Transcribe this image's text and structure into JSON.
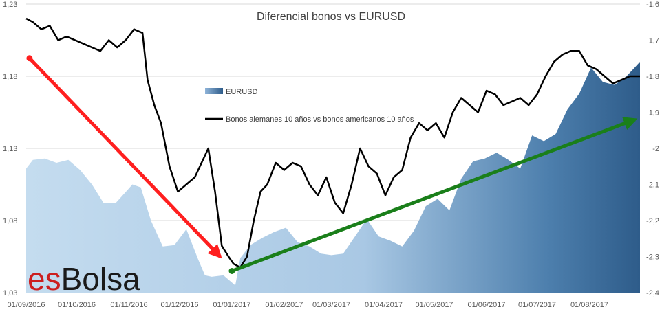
{
  "chart_data": {
    "type": "area",
    "title": "Diferencial bonos vs EURUSD",
    "categories": [
      "01/09/2016",
      "01/10/2016",
      "01/11/2016",
      "01/12/2016",
      "01/01/2017",
      "01/02/2017",
      "01/03/2017",
      "01/04/2017",
      "01/05/2017",
      "01/06/2017",
      "01/07/2017",
      "01/08/2017"
    ],
    "x_range": [
      "2016-09-01",
      "2017-08-31"
    ],
    "y_left": {
      "ticks": [
        "1,03",
        "1,08",
        "1,13",
        "1,18",
        "1,23"
      ],
      "ylim": [
        1.03,
        1.23
      ]
    },
    "y_right": {
      "ticks": [
        "-1,6",
        "-1,7",
        "-1,8",
        "-1,9",
        "-2",
        "-2,1",
        "-2,2",
        "-2,3",
        "-2,4"
      ],
      "ylim": [
        -2.4,
        -1.6
      ]
    },
    "legend_position": "middle-left",
    "grid": "horizontal",
    "series": [
      {
        "name": "EURUSD",
        "type": "area",
        "axis": "left",
        "color": "#2e5c8a",
        "x": [
          "2016-09-01",
          "2016-09-05",
          "2016-09-12",
          "2016-09-19",
          "2016-09-26",
          "2016-10-03",
          "2016-10-10",
          "2016-10-17",
          "2016-10-24",
          "2016-10-31",
          "2016-11-03",
          "2016-11-08",
          "2016-11-14",
          "2016-11-21",
          "2016-11-28",
          "2016-12-05",
          "2016-12-12",
          "2016-12-16",
          "2016-12-20",
          "2016-12-27",
          "2017-01-03",
          "2017-01-06",
          "2017-01-12",
          "2017-01-19",
          "2017-01-26",
          "2017-02-02",
          "2017-02-09",
          "2017-02-16",
          "2017-02-23",
          "2017-03-01",
          "2017-03-08",
          "2017-03-15",
          "2017-03-22",
          "2017-03-29",
          "2017-04-05",
          "2017-04-12",
          "2017-04-19",
          "2017-04-26",
          "2017-05-03",
          "2017-05-10",
          "2017-05-17",
          "2017-05-24",
          "2017-05-31",
          "2017-06-07",
          "2017-06-14",
          "2017-06-21",
          "2017-06-28",
          "2017-07-05",
          "2017-07-12",
          "2017-07-19",
          "2017-07-26",
          "2017-08-02",
          "2017-08-09",
          "2017-08-16",
          "2017-08-23",
          "2017-08-31"
        ],
        "values": [
          1.116,
          1.122,
          1.123,
          1.12,
          1.122,
          1.115,
          1.105,
          1.092,
          1.092,
          1.101,
          1.105,
          1.103,
          1.08,
          1.062,
          1.063,
          1.074,
          1.053,
          1.042,
          1.041,
          1.042,
          1.035,
          1.054,
          1.063,
          1.068,
          1.072,
          1.075,
          1.065,
          1.062,
          1.057,
          1.056,
          1.057,
          1.069,
          1.081,
          1.069,
          1.066,
          1.062,
          1.073,
          1.09,
          1.095,
          1.087,
          1.109,
          1.121,
          1.123,
          1.127,
          1.122,
          1.116,
          1.139,
          1.135,
          1.14,
          1.157,
          1.168,
          1.186,
          1.176,
          1.174,
          1.18,
          1.19
        ]
      },
      {
        "name": "Bonos alemanes 10 años vs bonos americanos 10 años",
        "type": "line",
        "axis": "right",
        "color": "#000000",
        "x": [
          "2016-09-01",
          "2016-09-05",
          "2016-09-10",
          "2016-09-15",
          "2016-09-20",
          "2016-09-25",
          "2016-09-30",
          "2016-10-05",
          "2016-10-10",
          "2016-10-15",
          "2016-10-20",
          "2016-10-25",
          "2016-10-30",
          "2016-11-04",
          "2016-11-09",
          "2016-11-12",
          "2016-11-16",
          "2016-11-20",
          "2016-11-25",
          "2016-11-30",
          "2016-12-05",
          "2016-12-10",
          "2016-12-14",
          "2016-12-18",
          "2016-12-22",
          "2016-12-26",
          "2016-12-30",
          "2017-01-02",
          "2017-01-06",
          "2017-01-10",
          "2017-01-14",
          "2017-01-18",
          "2017-01-22",
          "2017-01-27",
          "2017-02-01",
          "2017-02-06",
          "2017-02-11",
          "2017-02-16",
          "2017-02-21",
          "2017-02-26",
          "2017-03-03",
          "2017-03-08",
          "2017-03-13",
          "2017-03-18",
          "2017-03-23",
          "2017-03-28",
          "2017-04-02",
          "2017-04-07",
          "2017-04-12",
          "2017-04-17",
          "2017-04-22",
          "2017-04-27",
          "2017-05-02",
          "2017-05-07",
          "2017-05-12",
          "2017-05-17",
          "2017-05-22",
          "2017-05-27",
          "2017-06-01",
          "2017-06-06",
          "2017-06-11",
          "2017-06-16",
          "2017-06-21",
          "2017-06-26",
          "2017-07-01",
          "2017-07-06",
          "2017-07-11",
          "2017-07-16",
          "2017-07-21",
          "2017-07-26",
          "2017-07-31",
          "2017-08-05",
          "2017-08-10",
          "2017-08-15",
          "2017-08-20",
          "2017-08-25",
          "2017-08-31"
        ],
        "values": [
          -1.64,
          -1.65,
          -1.67,
          -1.66,
          -1.7,
          -1.69,
          -1.7,
          -1.71,
          -1.72,
          -1.73,
          -1.7,
          -1.72,
          -1.7,
          -1.67,
          -1.68,
          -1.81,
          -1.88,
          -1.93,
          -2.05,
          -2.12,
          -2.1,
          -2.08,
          -2.04,
          -2.0,
          -2.12,
          -2.27,
          -2.3,
          -2.32,
          -2.33,
          -2.3,
          -2.2,
          -2.12,
          -2.1,
          -2.04,
          -2.06,
          -2.04,
          -2.05,
          -2.1,
          -2.13,
          -2.08,
          -2.15,
          -2.18,
          -2.1,
          -2.0,
          -2.05,
          -2.07,
          -2.13,
          -2.08,
          -2.06,
          -1.97,
          -1.93,
          -1.95,
          -1.93,
          -1.97,
          -1.9,
          -1.86,
          -1.88,
          -1.9,
          -1.84,
          -1.85,
          -1.88,
          -1.87,
          -1.86,
          -1.88,
          -1.85,
          -1.8,
          -1.76,
          -1.74,
          -1.73,
          -1.73,
          -1.77,
          -1.78,
          -1.8,
          -1.82,
          -1.81,
          -1.8,
          -1.8
        ]
      }
    ],
    "annotations": [
      {
        "type": "arrow",
        "color": "#ff1f1f",
        "from_x": "2016-09-03",
        "from_y": -1.75,
        "to_x": "2016-12-25",
        "to_y": -2.3
      },
      {
        "type": "arrow",
        "color": "#1a7f1a",
        "from_x": "2017-01-01",
        "from_y": -2.34,
        "to_x": "2017-08-28",
        "to_y": -1.92
      }
    ]
  },
  "brand": {
    "part1": "es",
    "part2": "Bolsa"
  }
}
